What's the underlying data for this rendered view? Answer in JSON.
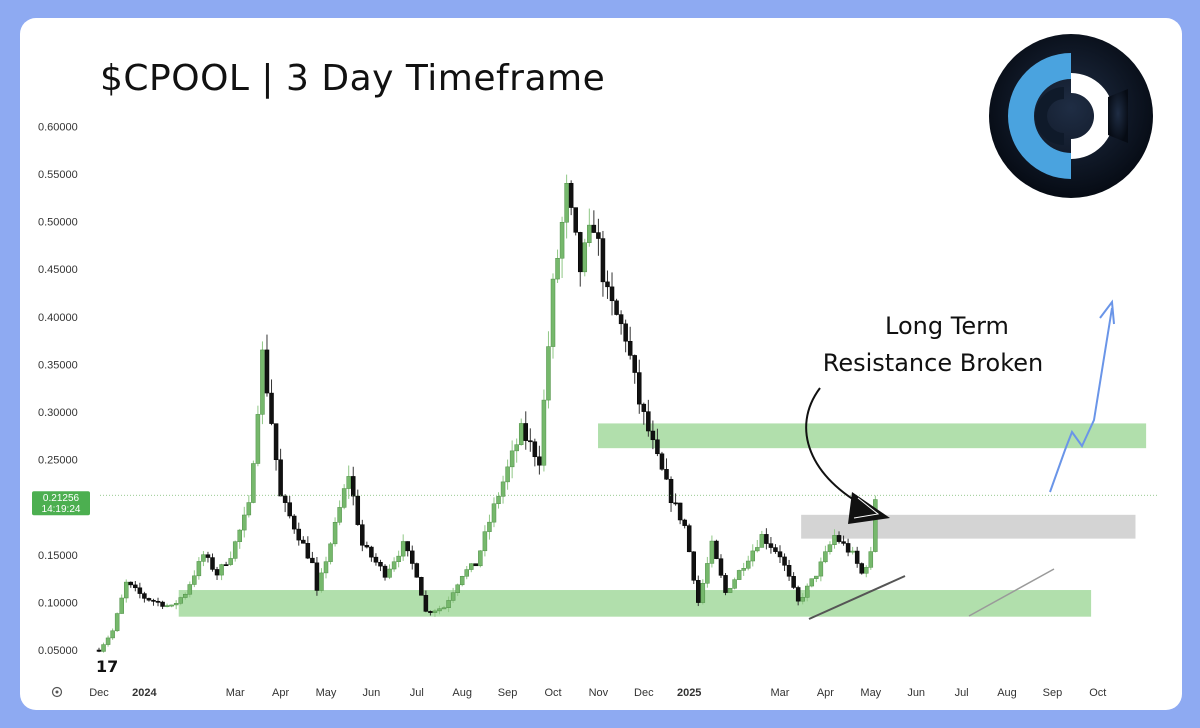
{
  "title": "$CPOOL | 3 Day Timeframe",
  "colors": {
    "background": "#8eaaf2",
    "card": "#ffffff",
    "up": "#76b86c",
    "down": "#111111",
    "zone_green": "#a9dca3",
    "zone_gray": "#cfcfcf",
    "arrow": "#6a95e8",
    "trendline": "#555555",
    "price_tag": "#4caf50"
  },
  "logo": {
    "icon": "cpool-logo-icon",
    "colors": [
      "#0f1a2a",
      "#4aa3df",
      "#ffffff"
    ]
  },
  "chart_data": {
    "type": "candlestick",
    "title": "$CPOOL | 3 Day Timeframe",
    "xlabel": "",
    "ylabel": "",
    "ylim": [
      0.03,
      0.62
    ],
    "y_ticks": [
      "0.05000",
      "0.10000",
      "0.15000",
      "0.20000",
      "0.25000",
      "0.30000",
      "0.35000",
      "0.40000",
      "0.45000",
      "0.50000",
      "0.55000",
      "0.60000"
    ],
    "y_tick_values": [
      0.05,
      0.1,
      0.15,
      0.2,
      0.25,
      0.3,
      0.35,
      0.4,
      0.45,
      0.5,
      0.55,
      0.6
    ],
    "x_ticks": [
      "Dec",
      "2024",
      "Mar",
      "Apr",
      "May",
      "Jun",
      "Jul",
      "Aug",
      "Sep",
      "Oct",
      "Nov",
      "Dec",
      "2025",
      "Mar",
      "Apr",
      "May",
      "Jun",
      "Jul",
      "Aug",
      "Sep",
      "Oct"
    ],
    "x_tick_month_index": [
      0,
      1,
      3,
      4,
      5,
      6,
      7,
      8,
      9,
      10,
      11,
      12,
      13,
      15,
      16,
      17,
      18,
      19,
      20,
      21,
      22
    ],
    "current_price": {
      "label": "0.21256",
      "value": 0.21256,
      "countdown": "14:19:24"
    },
    "close_path": [
      [
        0,
        0.05
      ],
      [
        0.3,
        0.07
      ],
      [
        0.6,
        0.12
      ],
      [
        1.0,
        0.105
      ],
      [
        1.6,
        0.095
      ],
      [
        1.9,
        0.11
      ],
      [
        2.3,
        0.15
      ],
      [
        2.6,
        0.13
      ],
      [
        2.9,
        0.15
      ],
      [
        3.3,
        0.2
      ],
      [
        3.6,
        0.36
      ],
      [
        3.8,
        0.29
      ],
      [
        4.0,
        0.21
      ],
      [
        4.3,
        0.18
      ],
      [
        4.7,
        0.14
      ],
      [
        4.8,
        0.11
      ],
      [
        5.2,
        0.18
      ],
      [
        5.5,
        0.235
      ],
      [
        5.8,
        0.16
      ],
      [
        6.3,
        0.13
      ],
      [
        6.7,
        0.16
      ],
      [
        7.0,
        0.13
      ],
      [
        7.2,
        0.09
      ],
      [
        7.6,
        0.095
      ],
      [
        8.0,
        0.13
      ],
      [
        8.3,
        0.14
      ],
      [
        8.7,
        0.2
      ],
      [
        9.3,
        0.28
      ],
      [
        9.7,
        0.25
      ],
      [
        10.0,
        0.43
      ],
      [
        10.3,
        0.53
      ],
      [
        10.6,
        0.45
      ],
      [
        10.9,
        0.5
      ],
      [
        11.2,
        0.42
      ],
      [
        11.6,
        0.38
      ],
      [
        11.9,
        0.31
      ],
      [
        12.3,
        0.25
      ],
      [
        12.6,
        0.21
      ],
      [
        12.9,
        0.18
      ],
      [
        13.2,
        0.1
      ],
      [
        13.5,
        0.16
      ],
      [
        13.8,
        0.11
      ],
      [
        14.2,
        0.14
      ],
      [
        14.6,
        0.17
      ],
      [
        15.0,
        0.15
      ],
      [
        15.4,
        0.1
      ],
      [
        15.8,
        0.13
      ],
      [
        16.2,
        0.17
      ],
      [
        16.6,
        0.15
      ],
      [
        16.8,
        0.13
      ],
      [
        17.0,
        0.15
      ],
      [
        17.1,
        0.21
      ]
    ],
    "zones": [
      {
        "kind": "support",
        "low": 0.085,
        "high": 0.113
      },
      {
        "kind": "resistance",
        "low": 0.262,
        "high": 0.288
      },
      {
        "kind": "broken-resistance",
        "low": 0.167,
        "high": 0.192
      }
    ],
    "annotations": [
      "Long Term",
      "Resistance Broken"
    ]
  }
}
